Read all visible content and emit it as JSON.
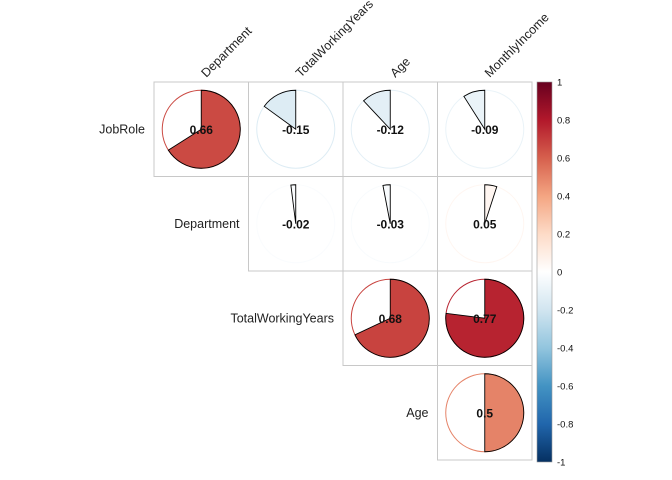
{
  "chart_data": {
    "type": "heatmap",
    "variant": "correlation-pie-upper",
    "col_labels": [
      "Department",
      "TotalWorkingYears",
      "Age",
      "MonthlyIncome"
    ],
    "row_labels": [
      "JobRole",
      "Department",
      "TotalWorkingYears",
      "Age"
    ],
    "cells": [
      {
        "row": "JobRole",
        "col": "Department",
        "value": 0.66,
        "label": "0.66"
      },
      {
        "row": "JobRole",
        "col": "TotalWorkingYears",
        "value": -0.15,
        "label": "-0.15"
      },
      {
        "row": "JobRole",
        "col": "Age",
        "value": -0.12,
        "label": "-0.12"
      },
      {
        "row": "JobRole",
        "col": "MonthlyIncome",
        "value": -0.09,
        "label": "-0.09"
      },
      {
        "row": "Department",
        "col": "TotalWorkingYears",
        "value": -0.02,
        "label": "-0.02"
      },
      {
        "row": "Department",
        "col": "Age",
        "value": -0.03,
        "label": "-0.03"
      },
      {
        "row": "Department",
        "col": "MonthlyIncome",
        "value": 0.05,
        "label": "0.05"
      },
      {
        "row": "TotalWorkingYears",
        "col": "Age",
        "value": 0.68,
        "label": "0.68"
      },
      {
        "row": "TotalWorkingYears",
        "col": "MonthlyIncome",
        "value": 0.77,
        "label": "0.77"
      },
      {
        "row": "Age",
        "col": "MonthlyIncome",
        "value": 0.5,
        "label": "0.5"
      }
    ],
    "colorbar": {
      "range": [
        -1,
        1
      ],
      "ticks": [
        "1",
        "0.8",
        "0.6",
        "0.4",
        "0.2",
        "0",
        "-0.2",
        "-0.4",
        "-0.6",
        "-0.8",
        "-1"
      ],
      "colors": [
        "#67001F",
        "#B2182B",
        "#D6604D",
        "#F4A582",
        "#FDDBC7",
        "#FFFFFF",
        "#D1E5F0",
        "#92C5DE",
        "#4393C3",
        "#2166AC",
        "#053061"
      ]
    },
    "grid": true,
    "legend": "right"
  }
}
